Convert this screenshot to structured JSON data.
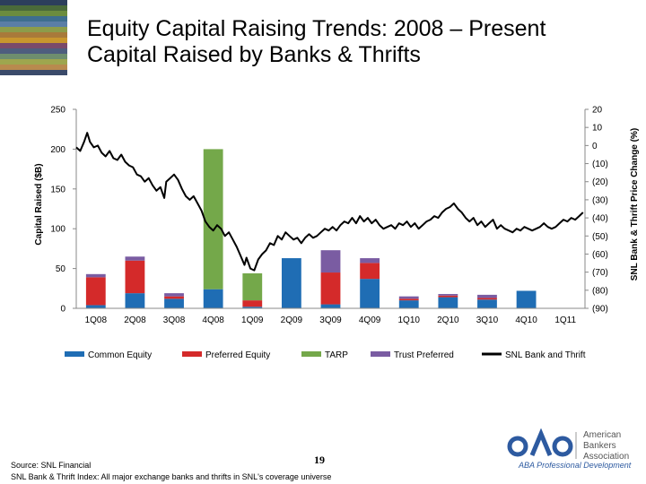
{
  "header": {
    "title_line1": "Equity Capital Raising Trends: 2008 – Present",
    "title_line2": "Capital Raised by Banks & Thrifts"
  },
  "footer": {
    "source_line1": "Source: SNL Financial",
    "source_line2": "SNL Bank & Thrift Index: All major exchange banks and thrifts in SNL's coverage universe",
    "page_number": "19"
  },
  "logo": {
    "org_line1": "American",
    "org_line2": "Bankers",
    "org_line3": "Association",
    "subtitle": "ABA Professional Development"
  },
  "colors": {
    "common_equity": "#1f6db4",
    "preferred_equity": "#d42a2a",
    "tarp": "#74a84a",
    "trust_preferred": "#7a5ca2",
    "index_line": "#000000",
    "corner_stripes": [
      "#2c3e5c",
      "#4a6a3a",
      "#6b8c3e",
      "#3e6e8e",
      "#5a7ea6",
      "#8c9c4a",
      "#a87a3a",
      "#c8962e",
      "#7a4a6a",
      "#4e5e7e",
      "#6e8e6e",
      "#9ea64e",
      "#b88a4e",
      "#3a4a6a"
    ]
  },
  "chart_data": {
    "type": "bar",
    "categories": [
      "1Q08",
      "2Q08",
      "3Q08",
      "4Q08",
      "1Q09",
      "2Q09",
      "3Q09",
      "4Q09",
      "1Q10",
      "2Q10",
      "3Q10",
      "4Q10",
      "1Q11"
    ],
    "stacked": true,
    "series": [
      {
        "name": "Common Equity",
        "color_key": "common_equity",
        "values": [
          4,
          19,
          12,
          24,
          2,
          63,
          5,
          37,
          10,
          14,
          11,
          22,
          0
        ]
      },
      {
        "name": "Preferred Equity",
        "color_key": "preferred_equity",
        "values": [
          35,
          41,
          3,
          0,
          8,
          0,
          40,
          20,
          2,
          2,
          2,
          0,
          0
        ]
      },
      {
        "name": "TARP",
        "color_key": "tarp",
        "values": [
          0,
          0,
          0,
          176,
          34,
          0,
          0,
          0,
          0,
          0,
          0,
          0,
          0
        ]
      },
      {
        "name": "Trust Preferred",
        "color_key": "trust_preferred",
        "values": [
          4,
          5,
          4,
          0,
          0,
          0,
          28,
          6,
          3,
          2,
          4,
          0,
          0
        ]
      }
    ],
    "line_series": {
      "name": "SNL Bank and Thrift",
      "axis": "right",
      "x_range": [
        0,
        13
      ],
      "points": [
        [
          0.0,
          -1
        ],
        [
          0.1,
          -3
        ],
        [
          0.2,
          2
        ],
        [
          0.28,
          7
        ],
        [
          0.35,
          2
        ],
        [
          0.45,
          -1
        ],
        [
          0.55,
          0
        ],
        [
          0.65,
          -4
        ],
        [
          0.75,
          -6
        ],
        [
          0.85,
          -3
        ],
        [
          0.95,
          -7
        ],
        [
          1.05,
          -8
        ],
        [
          1.15,
          -5
        ],
        [
          1.25,
          -9
        ],
        [
          1.35,
          -11
        ],
        [
          1.45,
          -12
        ],
        [
          1.55,
          -16
        ],
        [
          1.65,
          -17
        ],
        [
          1.75,
          -20
        ],
        [
          1.85,
          -18
        ],
        [
          1.95,
          -22
        ],
        [
          2.05,
          -25
        ],
        [
          2.15,
          -23
        ],
        [
          2.25,
          -29
        ],
        [
          2.3,
          -20
        ],
        [
          2.4,
          -18
        ],
        [
          2.5,
          -16
        ],
        [
          2.6,
          -19
        ],
        [
          2.7,
          -24
        ],
        [
          2.8,
          -28
        ],
        [
          2.9,
          -30
        ],
        [
          3.0,
          -28
        ],
        [
          3.1,
          -32
        ],
        [
          3.2,
          -36
        ],
        [
          3.3,
          -42
        ],
        [
          3.4,
          -45
        ],
        [
          3.5,
          -47
        ],
        [
          3.6,
          -44
        ],
        [
          3.7,
          -46
        ],
        [
          3.8,
          -50
        ],
        [
          3.9,
          -48
        ],
        [
          4.0,
          -52
        ],
        [
          4.1,
          -56
        ],
        [
          4.2,
          -61
        ],
        [
          4.3,
          -66
        ],
        [
          4.35,
          -62
        ],
        [
          4.45,
          -68
        ],
        [
          4.55,
          -69
        ],
        [
          4.65,
          -63
        ],
        [
          4.75,
          -60
        ],
        [
          4.85,
          -58
        ],
        [
          4.95,
          -54
        ],
        [
          5.05,
          -55
        ],
        [
          5.15,
          -50
        ],
        [
          5.25,
          -52
        ],
        [
          5.35,
          -48
        ],
        [
          5.45,
          -50
        ],
        [
          5.55,
          -52
        ],
        [
          5.65,
          -51
        ],
        [
          5.75,
          -54
        ],
        [
          5.85,
          -51
        ],
        [
          5.95,
          -49
        ],
        [
          6.05,
          -51
        ],
        [
          6.15,
          -50
        ],
        [
          6.25,
          -48
        ],
        [
          6.35,
          -46
        ],
        [
          6.45,
          -47
        ],
        [
          6.55,
          -45
        ],
        [
          6.65,
          -47
        ],
        [
          6.75,
          -44
        ],
        [
          6.85,
          -42
        ],
        [
          6.95,
          -43
        ],
        [
          7.05,
          -40
        ],
        [
          7.15,
          -43
        ],
        [
          7.25,
          -39
        ],
        [
          7.35,
          -42
        ],
        [
          7.45,
          -40
        ],
        [
          7.55,
          -43
        ],
        [
          7.65,
          -41
        ],
        [
          7.75,
          -44
        ],
        [
          7.85,
          -46
        ],
        [
          7.95,
          -45
        ],
        [
          8.05,
          -44
        ],
        [
          8.15,
          -46
        ],
        [
          8.25,
          -43
        ],
        [
          8.35,
          -44
        ],
        [
          8.45,
          -42
        ],
        [
          8.55,
          -45
        ],
        [
          8.65,
          -43
        ],
        [
          8.75,
          -46
        ],
        [
          8.85,
          -44
        ],
        [
          8.95,
          -42
        ],
        [
          9.05,
          -41
        ],
        [
          9.15,
          -39
        ],
        [
          9.25,
          -40
        ],
        [
          9.35,
          -37
        ],
        [
          9.45,
          -35
        ],
        [
          9.55,
          -34
        ],
        [
          9.65,
          -32
        ],
        [
          9.75,
          -35
        ],
        [
          9.85,
          -37
        ],
        [
          9.95,
          -40
        ],
        [
          10.05,
          -42
        ],
        [
          10.15,
          -40
        ],
        [
          10.25,
          -44
        ],
        [
          10.35,
          -42
        ],
        [
          10.45,
          -45
        ],
        [
          10.55,
          -43
        ],
        [
          10.65,
          -41
        ],
        [
          10.75,
          -46
        ],
        [
          10.85,
          -44
        ],
        [
          10.95,
          -46
        ],
        [
          11.05,
          -47
        ],
        [
          11.15,
          -48
        ],
        [
          11.25,
          -46
        ],
        [
          11.35,
          -47
        ],
        [
          11.45,
          -45
        ],
        [
          11.55,
          -46
        ],
        [
          11.65,
          -47
        ],
        [
          11.75,
          -46
        ],
        [
          11.85,
          -45
        ],
        [
          11.95,
          -43
        ],
        [
          12.05,
          -45
        ],
        [
          12.15,
          -46
        ],
        [
          12.25,
          -45
        ],
        [
          12.35,
          -43
        ],
        [
          12.45,
          -41
        ],
        [
          12.55,
          -42
        ],
        [
          12.65,
          -40
        ],
        [
          12.75,
          -41
        ],
        [
          12.85,
          -39
        ],
        [
          12.95,
          -37
        ]
      ]
    },
    "left_axis": {
      "label": "Capital Raised ($B)",
      "ylim": [
        0,
        250
      ],
      "ticks": [
        0,
        50,
        100,
        150,
        200,
        250
      ],
      "tick_labels": [
        "0",
        "50",
        "100",
        "150",
        "200",
        "250"
      ]
    },
    "right_axis": {
      "label": "SNL Bank & Thrift Price Change (%)",
      "ylim": [
        -90,
        20
      ],
      "ticks": [
        -90,
        -80,
        -70,
        -60,
        -50,
        -40,
        -30,
        -20,
        -10,
        0,
        10,
        20
      ],
      "tick_labels": [
        "(90)",
        "(80)",
        "(70)",
        "(60)",
        "(50)",
        "(40)",
        "(30)",
        "(20)",
        "(10)",
        "0",
        "10",
        "20"
      ]
    },
    "x_tick_labels": [
      "1Q08",
      "2Q08",
      "3Q08",
      "4Q08",
      "1Q09",
      "2Q09",
      "3Q09",
      "4Q09",
      "1Q10",
      "2Q10",
      "3Q10",
      "4Q10",
      "1Q11"
    ],
    "legend": {
      "placement": "bottom",
      "items": [
        "Common Equity",
        "Preferred Equity",
        "TARP",
        "Trust Preferred",
        "SNL Bank and Thrift"
      ]
    },
    "grid": false
  }
}
